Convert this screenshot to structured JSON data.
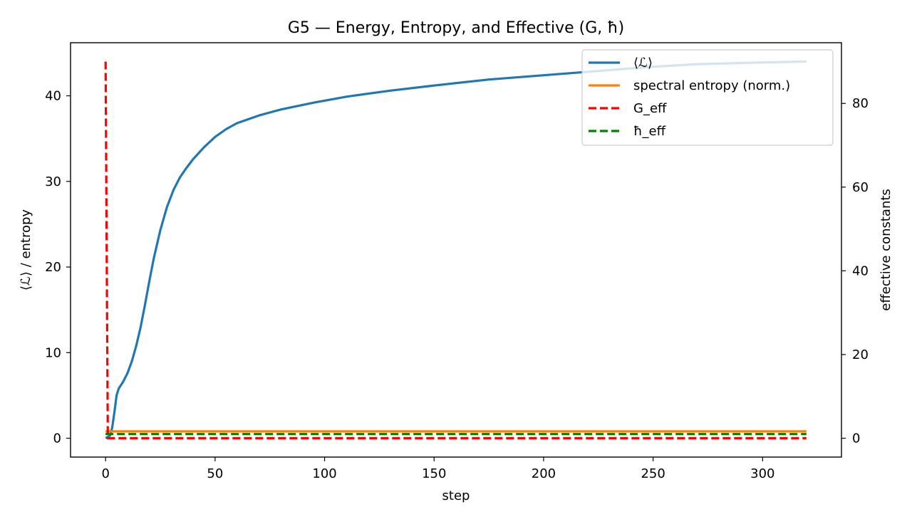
{
  "chart_data": {
    "type": "line",
    "title": "G5 — Energy, Entropy, and Effective (G, ħ)",
    "xlabel": "step",
    "ylabel_left": "⟨ℒ⟩ / entropy",
    "ylabel_right": "effective constants",
    "xlim": [
      -16,
      336
    ],
    "ylim_left": [
      -2.2,
      46.2
    ],
    "ylim_right": [
      -4.5,
      94.5
    ],
    "xticks": [
      0,
      50,
      100,
      150,
      200,
      250,
      300
    ],
    "yticks_left": [
      0,
      10,
      20,
      30,
      40
    ],
    "yticks_right": [
      0,
      20,
      40,
      60,
      80
    ],
    "grid": false,
    "legend_position": "top-right",
    "series": [
      {
        "name": "⟨ℒ⟩",
        "axis": "left",
        "color": "#1f77b4",
        "style": "solid",
        "x": [
          0,
          2,
          3,
          4,
          5,
          6,
          8,
          10,
          12,
          14,
          16,
          18,
          20,
          22,
          25,
          28,
          31,
          34,
          37,
          40,
          45,
          50,
          55,
          60,
          70,
          80,
          95,
          110,
          130,
          150,
          175,
          200,
          225,
          250,
          270,
          300,
          320
        ],
        "y": [
          0,
          0.3,
          1.2,
          3.0,
          5.0,
          5.8,
          6.6,
          7.6,
          9.0,
          10.8,
          13.0,
          15.6,
          18.4,
          21.0,
          24.3,
          27.0,
          29.0,
          30.5,
          31.6,
          32.6,
          34.0,
          35.2,
          36.1,
          36.8,
          37.7,
          38.4,
          39.2,
          39.9,
          40.6,
          41.2,
          41.9,
          42.4,
          42.9,
          43.4,
          43.7,
          43.9,
          44.0
        ]
      },
      {
        "name": "spectral entropy (norm.)",
        "axis": "left",
        "color": "#ff7f0e",
        "style": "solid",
        "x": [
          0,
          320
        ],
        "y": [
          0.8,
          0.8
        ]
      },
      {
        "name": "G_eff",
        "axis": "right",
        "color": "#ff0000",
        "style": "dashed",
        "x": [
          0,
          1,
          320
        ],
        "y": [
          90,
          0,
          0
        ]
      },
      {
        "name": "ħ_eff",
        "axis": "right",
        "color": "#008000",
        "style": "dashed",
        "x": [
          0,
          320
        ],
        "y": [
          1,
          1
        ]
      }
    ]
  }
}
